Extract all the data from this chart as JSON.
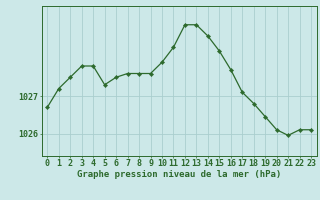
{
  "hours": [
    0,
    1,
    2,
    3,
    4,
    5,
    6,
    7,
    8,
    9,
    10,
    11,
    12,
    13,
    14,
    15,
    16,
    17,
    18,
    19,
    20,
    21,
    22,
    23
  ],
  "pressure": [
    1026.7,
    1027.2,
    1027.5,
    1027.8,
    1027.8,
    1027.3,
    1027.5,
    1027.6,
    1027.6,
    1027.6,
    1027.9,
    1028.3,
    1028.9,
    1028.9,
    1028.6,
    1028.2,
    1027.7,
    1027.1,
    1026.8,
    1026.45,
    1026.1,
    1025.95,
    1026.1,
    1026.1
  ],
  "line_color": "#2d6a2d",
  "marker_color": "#2d6a2d",
  "bg_color": "#cce8e8",
  "grid_color": "#aacece",
  "axis_color": "#2d6a2d",
  "xlabel": "Graphe pression niveau de la mer (hPa)",
  "ytick_labels": [
    "1026",
    "1027"
  ],
  "ytick_vals": [
    1026,
    1027
  ],
  "ylim": [
    1025.4,
    1029.4
  ],
  "xlim": [
    -0.5,
    23.5
  ],
  "xlabel_fontsize": 6.5,
  "tick_fontsize": 6.0
}
